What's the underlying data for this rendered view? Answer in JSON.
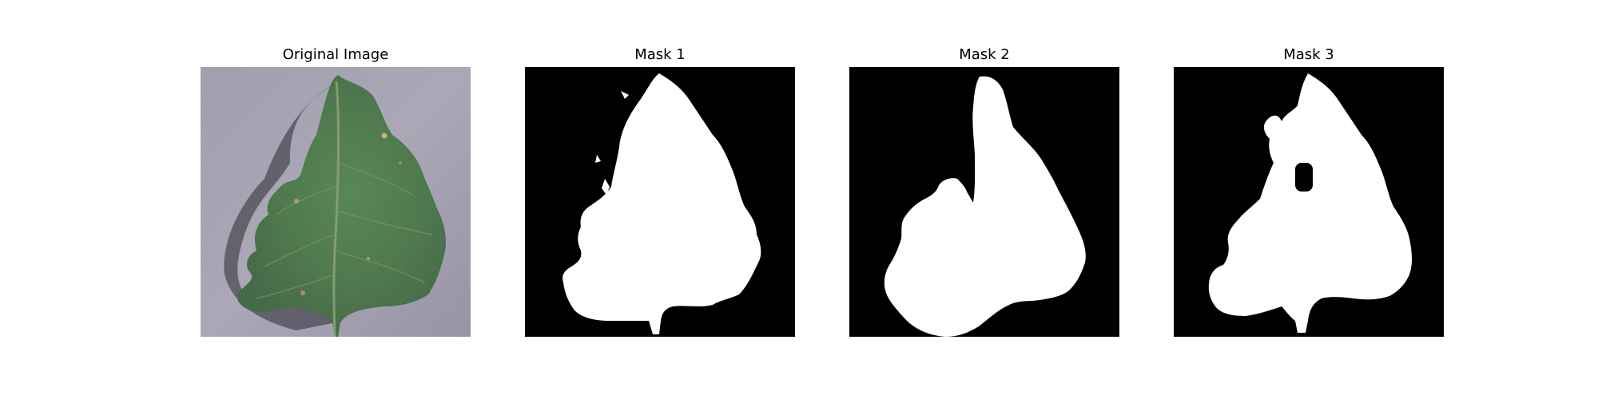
{
  "figure": {
    "panels": [
      {
        "title": "Original Image",
        "kind": "photo",
        "subject": "green tomato leaf with small brown lesions on gray textured background"
      },
      {
        "title": "Mask 1",
        "kind": "mask"
      },
      {
        "title": "Mask 2",
        "kind": "mask"
      },
      {
        "title": "Mask 3",
        "kind": "mask"
      }
    ],
    "colors": {
      "background": "#ffffff",
      "mask_foreground": "#ffffff",
      "mask_background": "#000000",
      "leaf_green": "#3f6b3c",
      "backdrop_gray": "#9c97ab"
    }
  }
}
